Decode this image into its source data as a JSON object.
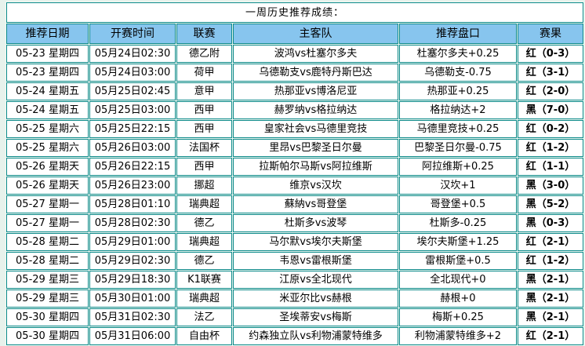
{
  "title": "一周历史推荐成绩：",
  "colors": {
    "header_bg": "#87c5ee",
    "border_teal": "#0c8a8a",
    "page_bg": "#e7f2ec",
    "win_red": "#ff0000",
    "loss_black": "#000000"
  },
  "table": {
    "headers": [
      "推荐日期",
      "开赛时间",
      "联赛",
      "主客队",
      "推荐盘口",
      "赛果"
    ],
    "rows": [
      {
        "date": "05-23 星期四",
        "time": "05月24日02:30",
        "league": "德乙附",
        "teams": "波鸿vs杜塞尔多夫",
        "handicap": "杜塞尔多夫+0.25",
        "result": "红（0-3）"
      },
      {
        "date": "05-23 星期四",
        "time": "05月24日03:00",
        "league": "荷甲",
        "teams": "乌德勒支vs鹿特丹斯巴达",
        "handicap": "乌德勒支-0.75",
        "result": "红（3-1）"
      },
      {
        "date": "05-24 星期五",
        "time": "05月25日02:45",
        "league": "意甲",
        "teams": "热那亚vs博洛尼亚",
        "handicap": "热那亚+0.25",
        "result": "红（2-0）"
      },
      {
        "date": "05-24 星期五",
        "time": "05月25日03:00",
        "league": "西甲",
        "teams": "赫罗纳vs格拉纳达",
        "handicap": "格拉纳达+2",
        "result": "黑（7-0）"
      },
      {
        "date": "05-25 星期六",
        "time": "05月25日22:15",
        "league": "西甲",
        "teams": "皇家社会vs马德里竞技",
        "handicap": "马德里竞技+0.25",
        "result": "红（0-2）"
      },
      {
        "date": "05-25 星期六",
        "time": "05月26日03:00",
        "league": "法国杯",
        "teams": "里昂vs巴黎圣日尔曼",
        "handicap": "巴黎圣日尔曼-0.75",
        "result": "红（1-2）"
      },
      {
        "date": "05-26 星期天",
        "time": "05月26日22:15",
        "league": "西甲",
        "teams": "拉斯帕尔马斯vs阿拉维斯",
        "handicap": "阿拉维斯+0.25",
        "result": "红（1-1）"
      },
      {
        "date": "05-26 星期天",
        "time": "05月26日23:00",
        "league": "挪超",
        "teams": "维京vs汉坎",
        "handicap": "汉坎+1",
        "result": "黑（3-0）"
      },
      {
        "date": "05-27 星期一",
        "time": "05月28日01:10",
        "league": "瑞典超",
        "teams": "蘇納vs哥登堡",
        "handicap": "哥登堡+0.5",
        "result": "黑（5-2）"
      },
      {
        "date": "05-27 星期一",
        "time": "05月28日02:30",
        "league": "德乙",
        "teams": "杜斯多vs波琴",
        "handicap": "杜斯多-0.25",
        "result": "黑（0-3）"
      },
      {
        "date": "05-28 星期二",
        "time": "05月29日01:00",
        "league": "瑞典超",
        "teams": "马尔默vs埃尔夫斯堡",
        "handicap": "埃尔夫斯堡+1.25",
        "result": "红（2-1）"
      },
      {
        "date": "05-28 星期二",
        "time": "05月29日02:30",
        "league": "德乙",
        "teams": "韦恩vs雷根斯堡",
        "handicap": "雷根斯堡+0.5",
        "result": "红（1-2）"
      },
      {
        "date": "05-29 星期三",
        "time": "05月29日18:30",
        "league": "K1联赛",
        "teams": "江原vs全北现代",
        "handicap": "全北现代+0",
        "result": "黑（2-1）"
      },
      {
        "date": "05-29 星期三",
        "time": "05月30日01:00",
        "league": "瑞典超",
        "teams": "米亚尔比vs赫根",
        "handicap": "赫根+0",
        "result": "黑（2-1）"
      },
      {
        "date": "05-30 星期四",
        "time": "05月31日02:30",
        "league": "法乙",
        "teams": "圣埃蒂安vs梅斯",
        "handicap": "梅斯+0.25",
        "result": "黑（2-1）"
      },
      {
        "date": "05-30 星期四",
        "time": "05月31日06:00",
        "league": "自由杯",
        "teams": "约森独立队vs利物浦蒙特维多",
        "handicap": "利物浦蒙特维多+2",
        "result": "红（2-1）"
      }
    ]
  }
}
